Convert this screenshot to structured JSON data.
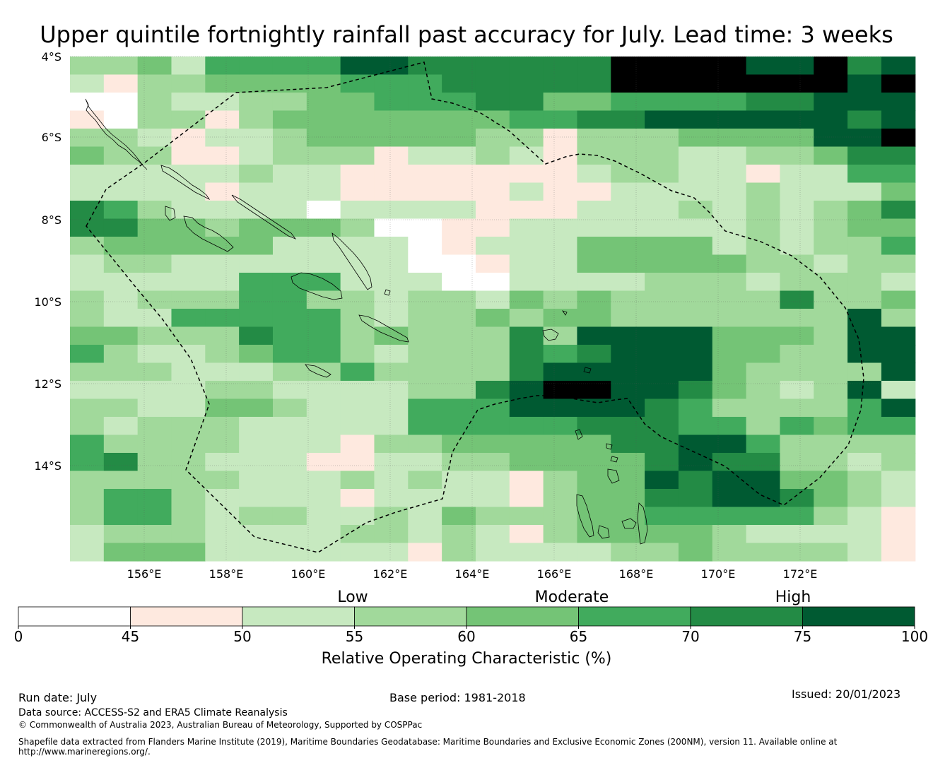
{
  "title": "Upper quintile fortnightly rainfall past accuracy for July. Lead time: 3 weeks",
  "map": {
    "lat_labels": [
      "4°S",
      "6°S",
      "8°S",
      "10°S",
      "12°S",
      "14°S"
    ],
    "lon_labels": [
      "156°E",
      "158°E",
      "160°E",
      "162°E",
      "164°E",
      "166°E",
      "168°E",
      "170°E",
      "172°E"
    ],
    "rows": [
      "3342555577666666888877867",
      "2133444455566666888888878",
      "0032233445556644555566777",
      "1033134444444556677777767",
      "3321223444443313334444778",
      "4331123331223213332233466",
      "2222232211111112332212255",
      "2222122211111211222232224",
      "6532222022221112223232346",
      "6644344430011222222232344",
      "3444442222012224444232335",
      "2332222222001224444433233",
      "2222255522200222233323332",
      "3233355332332434333336334",
      "3225555532334344333333373",
      "4433365534333637777444377",
      "5322345532333656777443377",
      "3332223353333677777433337",
      "2222332222336788776432372",
      "3322443222555777765333357",
      "3233322222555556665535455",
      "5333322213344444667753333",
      "5633222112233444467663323",
      "3333322232322134476774432",
      "3553222212222134466776432",
      "3553233223243334455555321",
      "2333222233232134444322221",
      "2444222222132222334333321"
    ]
  },
  "colorbar": {
    "categories": [
      "Low",
      "Moderate",
      "High"
    ],
    "ticks": [
      "0",
      "45",
      "50",
      "55",
      "60",
      "65",
      "70",
      "75",
      "100"
    ],
    "colors": [
      "#ffffff",
      "#fee9df",
      "#c7e9c0",
      "#a1d99b",
      "#74c476",
      "#41ab5d",
      "#238b45",
      "#005a32"
    ],
    "label": "Relative Operating Characteristic (%)"
  },
  "footer": {
    "run_date": "Run date: July",
    "base_period": "Base period: 1981-2018",
    "issued": "Issued: 20/01/2023",
    "data_source": "Data source: ACCESS-S2 and ERA5 Climate Reanalysis",
    "copyright": "© Commonwealth of Australia 2023, Australian Bureau of Meteorology, Supported by COSPPac",
    "shapefile": "Shapefile data extracted from Flanders Marine Institute (2019), Maritime Boundaries Geodatabase: Maritime Boundaries and Exclusive Economic Zones (200NM), version 11. Available online at",
    "url": "http://www.marineregions.org/."
  }
}
